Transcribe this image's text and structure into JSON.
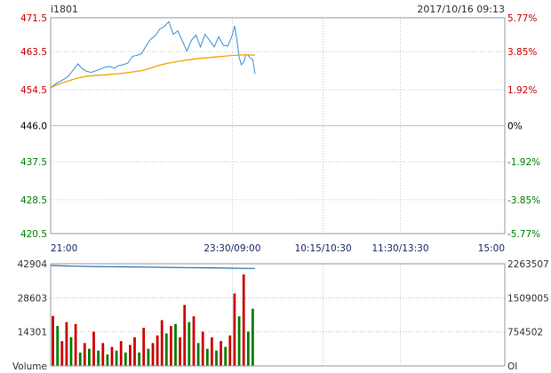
{
  "header": {
    "symbol": "i1801",
    "datetime": "2017/10/16 09:13"
  },
  "colors": {
    "up": "#cc0000",
    "down": "#008000",
    "flat": "#000000",
    "price_line": "#3a8fd6",
    "avg_line": "#f2a400",
    "oi_line": "#2a6fb0",
    "grid": "#c8c8c8",
    "frame": "#9a9a9a"
  },
  "chart_data": [
    {
      "type": "line",
      "title": "",
      "base_price": 446.0,
      "ylim": [
        420.5,
        471.5
      ],
      "left_ticks": [
        {
          "value": 471.5,
          "label": "471.5",
          "color": "up"
        },
        {
          "value": 463.5,
          "label": "463.5",
          "color": "up"
        },
        {
          "value": 454.5,
          "label": "454.5",
          "color": "up"
        },
        {
          "value": 446.0,
          "label": "446.0",
          "color": "flat"
        },
        {
          "value": 437.5,
          "label": "437.5",
          "color": "down"
        },
        {
          "value": 428.5,
          "label": "428.5",
          "color": "down"
        },
        {
          "value": 420.5,
          "label": "420.5",
          "color": "down"
        }
      ],
      "right_ticks": [
        {
          "value": 471.5,
          "label": "5.77%",
          "color": "up"
        },
        {
          "value": 463.5,
          "label": "3.85%",
          "color": "up"
        },
        {
          "value": 454.5,
          "label": "1.92%",
          "color": "up"
        },
        {
          "value": 446.0,
          "label": "0%",
          "color": "flat"
        },
        {
          "value": 437.5,
          "label": "-1.92%",
          "color": "down"
        },
        {
          "value": 428.5,
          "label": "-3.85%",
          "color": "down"
        },
        {
          "value": 420.5,
          "label": "-5.77%",
          "color": "down"
        }
      ],
      "x_ticks": [
        "21:00",
        "23:30/09:00",
        "10:15/10:30",
        "11:30/13:30",
        "15:00"
      ],
      "x_tick_pos": [
        0,
        40,
        60,
        77,
        100
      ],
      "x_total": 100,
      "series": [
        {
          "name": "",
          "key": "price",
          "x": [
            0,
            1,
            2,
            3,
            4,
            5,
            6,
            7,
            8,
            9,
            10,
            11,
            12,
            13,
            14,
            15,
            16,
            17,
            18,
            19,
            20,
            21,
            22,
            23,
            24,
            25,
            26,
            27,
            28,
            29,
            30,
            31,
            32,
            33,
            34,
            35,
            36,
            37,
            38,
            39,
            40,
            40.5,
            41,
            41.5,
            42,
            42.5,
            43,
            43.5,
            44,
            44.5,
            45
          ],
          "y": [
            455.0,
            455.8,
            456.4,
            457.0,
            457.8,
            459.2,
            460.6,
            459.4,
            458.8,
            458.6,
            459.0,
            459.4,
            459.8,
            460.0,
            459.6,
            460.2,
            460.4,
            460.8,
            462.4,
            462.6,
            463.0,
            464.8,
            466.4,
            467.2,
            468.8,
            469.4,
            470.6,
            467.6,
            468.4,
            466.0,
            463.6,
            466.2,
            467.4,
            464.6,
            467.6,
            466.2,
            464.6,
            467.0,
            465.0,
            464.8,
            467.4,
            469.6,
            466.4,
            462.2,
            460.4,
            461.0,
            462.8,
            462.6,
            462.0,
            461.6,
            458.2
          ]
        },
        {
          "name": "",
          "key": "avg",
          "x": [
            0,
            2,
            4,
            6,
            8,
            10,
            12,
            14,
            16,
            18,
            20,
            22,
            24,
            26,
            28,
            30,
            32,
            34,
            36,
            38,
            40,
            41,
            42,
            43,
            44,
            45
          ],
          "y": [
            455.0,
            455.9,
            456.6,
            457.3,
            457.7,
            457.9,
            458.0,
            458.2,
            458.4,
            458.7,
            459.0,
            459.6,
            460.3,
            460.8,
            461.2,
            461.5,
            461.8,
            462.0,
            462.2,
            462.4,
            462.6,
            462.6,
            462.7,
            462.7,
            462.7,
            462.6
          ]
        }
      ]
    },
    {
      "type": "bar",
      "title": "",
      "volume_label": "Volume",
      "oi_label": "OI",
      "volume_ylim": [
        0,
        42904
      ],
      "oi_ylim": [
        0,
        2263507
      ],
      "left_ticks": [
        {
          "value": 42904,
          "label": "42904"
        },
        {
          "value": 28603,
          "label": "28603"
        },
        {
          "value": 14301,
          "label": "14301"
        }
      ],
      "right_ticks": [
        {
          "value": 2263507,
          "label": "2263507"
        },
        {
          "value": 1509005,
          "label": "1509005"
        },
        {
          "value": 754502,
          "label": "754502"
        }
      ],
      "x_total": 100,
      "volume": {
        "x": [
          0.5,
          1.5,
          2.5,
          3.5,
          4.5,
          5.5,
          6.5,
          7.5,
          8.5,
          9.5,
          10.5,
          11.5,
          12.5,
          13.5,
          14.5,
          15.5,
          16.5,
          17.5,
          18.5,
          19.5,
          20.5,
          21.5,
          22.5,
          23.5,
          24.5,
          25.5,
          26.5,
          27.5,
          28.5,
          29.5,
          30.5,
          31.5,
          32.5,
          33.5,
          34.5,
          35.5,
          36.5,
          37.5,
          38.5,
          39.5,
          40.5,
          41.5,
          42.5,
          43.5,
          44.5
        ],
        "values": [
          21000,
          16800,
          10400,
          18400,
          12000,
          17600,
          5600,
          9600,
          7200,
          14400,
          6400,
          9600,
          4800,
          8000,
          6400,
          10400,
          5600,
          8800,
          12000,
          5600,
          16000,
          7200,
          9600,
          12800,
          19200,
          13600,
          16800,
          17600,
          12000,
          25600,
          18400,
          20800,
          9600,
          14400,
          7200,
          12000,
          6400,
          10400,
          8000,
          12800,
          30400,
          20800,
          38400,
          14400,
          24000
        ],
        "colors": [
          "up",
          "down",
          "up",
          "up",
          "down",
          "up",
          "down",
          "up",
          "down",
          "up",
          "down",
          "up",
          "down",
          "up",
          "down",
          "up",
          "down",
          "up",
          "up",
          "down",
          "up",
          "down",
          "up",
          "up",
          "up",
          "down",
          "up",
          "down",
          "up",
          "up",
          "down",
          "up",
          "down",
          "up",
          "down",
          "up",
          "down",
          "up",
          "down",
          "up",
          "up",
          "down",
          "up",
          "down",
          "down"
        ]
      },
      "open_interest": {
        "x": [
          0,
          5,
          10,
          15,
          20,
          25,
          30,
          35,
          40,
          45
        ],
        "values": [
          2227000,
          2210000,
          2202000,
          2196000,
          2190000,
          2184000,
          2178000,
          2172000,
          2166000,
          2160000
        ]
      }
    }
  ]
}
